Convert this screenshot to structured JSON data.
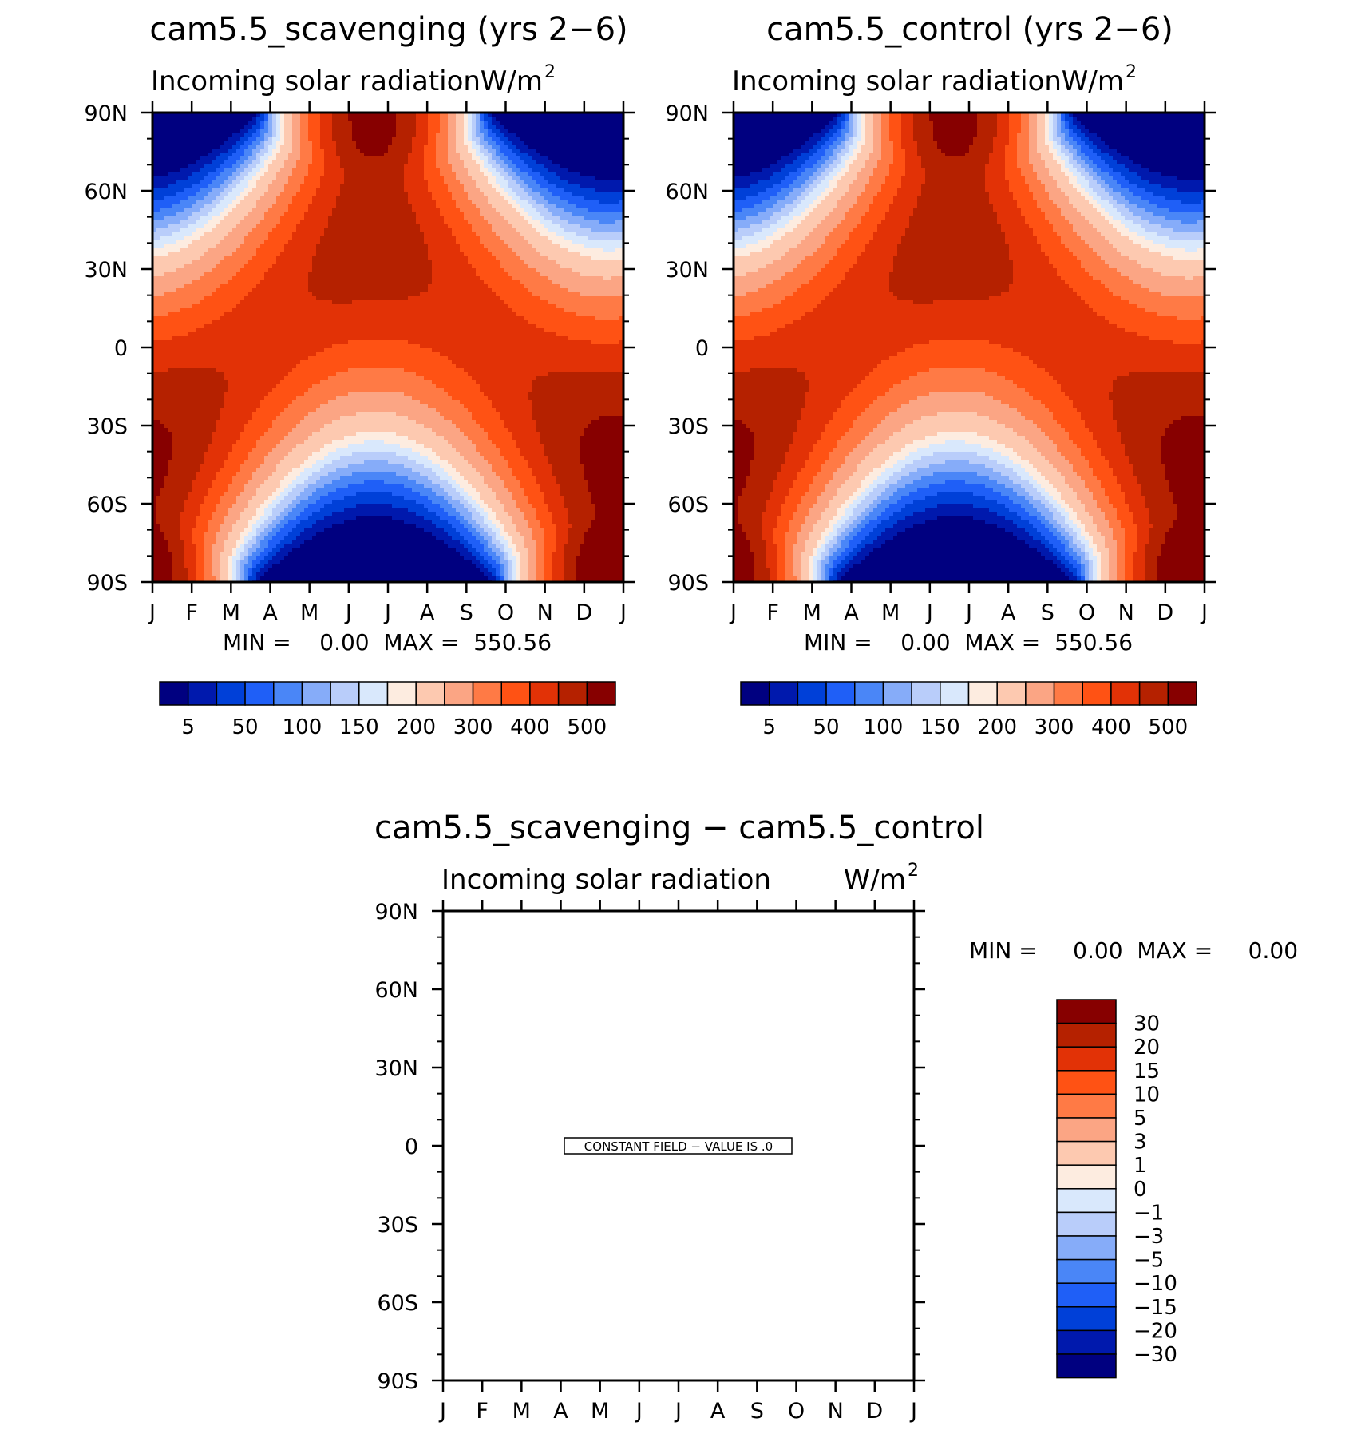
{
  "panels": [
    {
      "title": "cam5.5_scavenging (yrs 2−6)",
      "subtitle": "Incoming solar radiation",
      "units": "W/m",
      "units_sup": "2",
      "stats": "MIN =    0.00  MAX =  550.56",
      "constant_field_label": ""
    },
    {
      "title": "cam5.5_control (yrs 2−6)",
      "subtitle": "Incoming solar radiation",
      "units": "W/m",
      "units_sup": "2",
      "stats": "MIN =    0.00  MAX =  550.56",
      "constant_field_label": ""
    },
    {
      "title": "cam5.5_scavenging − cam5.5_control",
      "subtitle": "Incoming solar radiation",
      "units": "W/m",
      "units_sup": "2",
      "stats": "MIN =     0.00  MAX =     0.00",
      "constant_field_label": "CONSTANT FIELD − VALUE IS .0"
    }
  ],
  "chart_data": [
    {
      "type": "heatmap",
      "title": "cam5.5_scavenging (yrs 2−6)",
      "subtitle": "Incoming solar radiation",
      "x_tick_labels": [
        "J",
        "F",
        "M",
        "A",
        "M",
        "J",
        "J",
        "A",
        "S",
        "O",
        "N",
        "D",
        "J"
      ],
      "y_tick_labels": [
        "90N",
        "60N",
        "30N",
        "0",
        "30S",
        "60S",
        "90S"
      ],
      "y_values": [
        90,
        60,
        30,
        0,
        -30,
        -60,
        -90
      ],
      "min": 0.0,
      "max": 550.56,
      "contour_levels": [
        5,
        25,
        50,
        75,
        100,
        125,
        150,
        175,
        200,
        250,
        300,
        350,
        400,
        450,
        500
      ],
      "colorbar_labels": [
        "5",
        "50",
        "100",
        "150",
        "200",
        "300",
        "400",
        "500"
      ],
      "colors": [
        "#000080",
        "#0019ad",
        "#0040d8",
        "#1f5ff7",
        "#4a86f7",
        "#86acf9",
        "#b9cdfa",
        "#d9e8fc",
        "#fdece0",
        "#fdc9b0",
        "#fba584",
        "#ff7a45",
        "#ff5214",
        "#e23206",
        "#b52100",
        "#870000"
      ]
    },
    {
      "type": "heatmap",
      "title": "cam5.5_control (yrs 2−6)",
      "subtitle": "Incoming solar radiation",
      "x_tick_labels": [
        "J",
        "F",
        "M",
        "A",
        "M",
        "J",
        "J",
        "A",
        "S",
        "O",
        "N",
        "D",
        "J"
      ],
      "y_tick_labels": [
        "90N",
        "60N",
        "30N",
        "0",
        "30S",
        "60S",
        "90S"
      ],
      "y_values": [
        90,
        60,
        30,
        0,
        -30,
        -60,
        -90
      ],
      "min": 0.0,
      "max": 550.56,
      "contour_levels": [
        5,
        25,
        50,
        75,
        100,
        125,
        150,
        175,
        200,
        250,
        300,
        350,
        400,
        450,
        500
      ],
      "colorbar_labels": [
        "5",
        "50",
        "100",
        "150",
        "200",
        "300",
        "400",
        "500"
      ],
      "colors": [
        "#000080",
        "#0019ad",
        "#0040d8",
        "#1f5ff7",
        "#4a86f7",
        "#86acf9",
        "#b9cdfa",
        "#d9e8fc",
        "#fdece0",
        "#fdc9b0",
        "#fba584",
        "#ff7a45",
        "#ff5214",
        "#e23206",
        "#b52100",
        "#870000"
      ]
    },
    {
      "type": "heatmap",
      "title": "cam5.5_scavenging − cam5.5_control",
      "subtitle": "Incoming solar radiation",
      "x_tick_labels": [
        "J",
        "F",
        "M",
        "A",
        "M",
        "J",
        "J",
        "A",
        "S",
        "O",
        "N",
        "D",
        "J"
      ],
      "y_tick_labels": [
        "90N",
        "60N",
        "30N",
        "0",
        "30S",
        "60S",
        "90S"
      ],
      "y_values": [
        90,
        60,
        30,
        0,
        -30,
        -60,
        -90
      ],
      "min": 0.0,
      "max": 0.0,
      "constant_value": 0.0,
      "colorbar_labels": [
        "30",
        "20",
        "15",
        "10",
        "5",
        "3",
        "1",
        "0",
        "−1",
        "−3",
        "−5",
        "−10",
        "−15",
        "−20",
        "−30"
      ],
      "colors": [
        "#870000",
        "#b52100",
        "#e23206",
        "#ff5214",
        "#ff7a45",
        "#fba584",
        "#fdc9b0",
        "#fdece0",
        "#d9e8fc",
        "#b9cdfa",
        "#86acf9",
        "#4a86f7",
        "#1f5ff7",
        "#0040d8",
        "#0019ad",
        "#000080"
      ]
    }
  ]
}
